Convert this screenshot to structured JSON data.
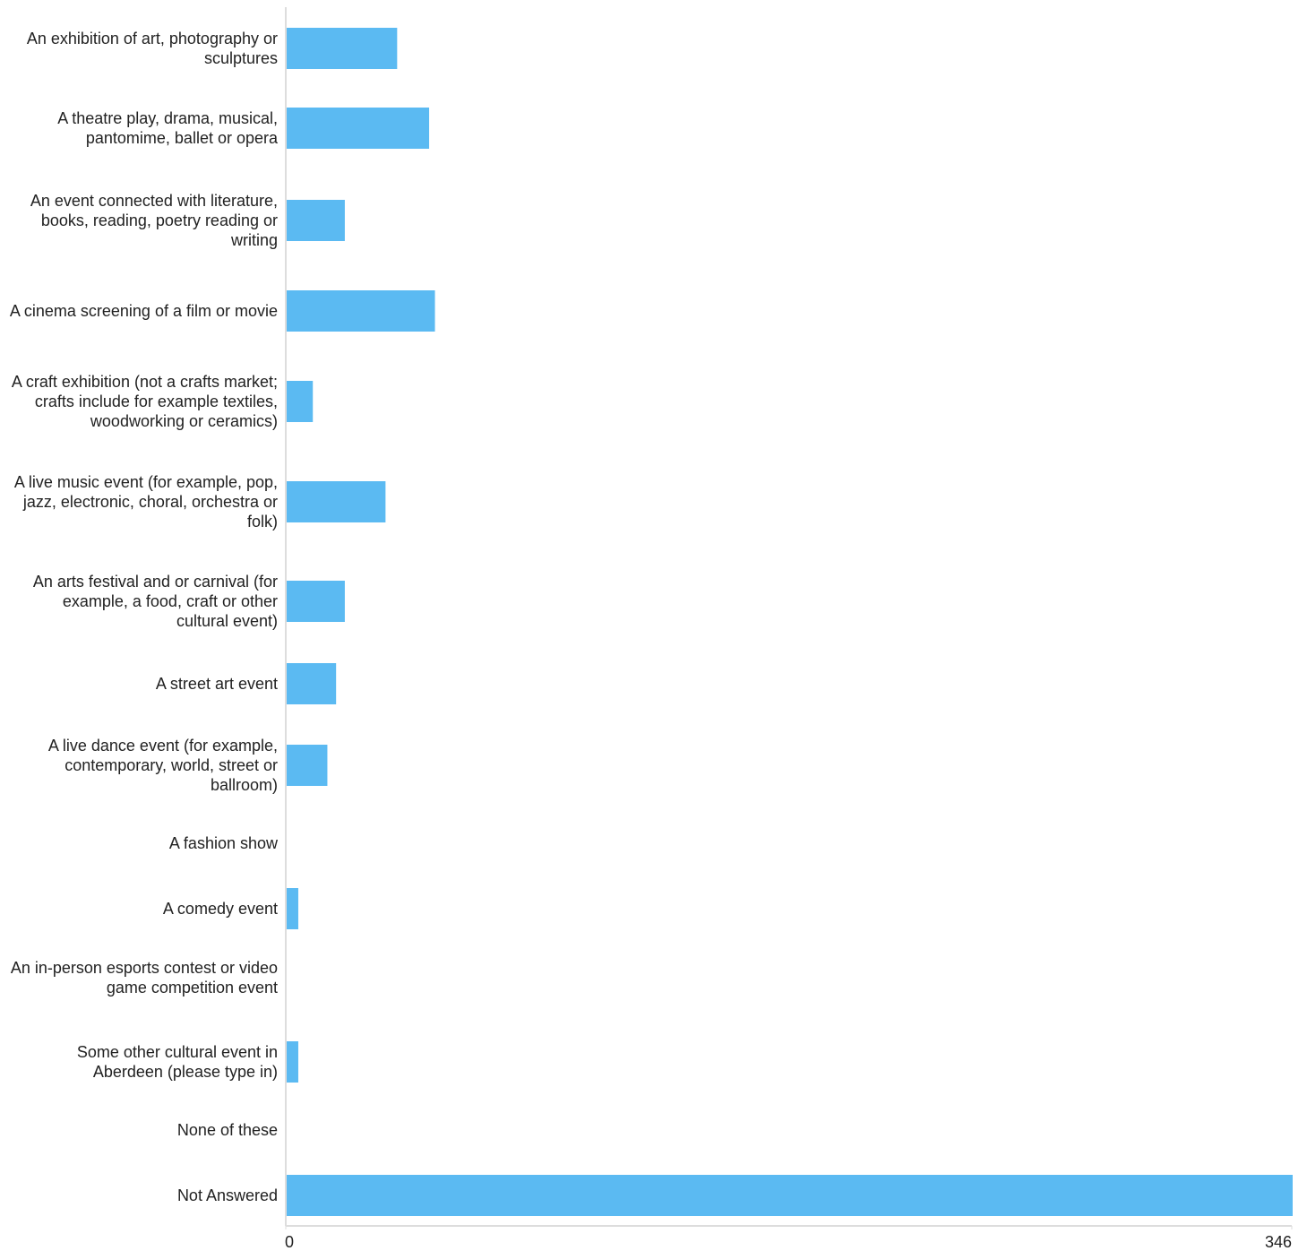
{
  "chart_data": {
    "type": "barh",
    "categories": [
      "An exhibition of art, photography or sculptures",
      "A theatre play, drama, musical, pantomime, ballet or opera",
      "An event connected with literature, books, reading, poetry reading or writing",
      "A cinema screening of a film or movie",
      "A craft exhibition (not a crafts market; crafts include for example textiles, woodworking or ceramics)",
      "A live music event (for example, pop, jazz, electronic, choral, orchestra or folk)",
      "An arts festival and or carnival (for example, a food, craft or other cultural event)",
      "A street art event",
      "A live dance event (for example, contemporary, world, street or ballroom)",
      "A fashion show",
      "A comedy event",
      "An in-person esports contest or video game competition event",
      "Some other cultural event in Aberdeen (please type in)",
      "None of these",
      "Not Answered"
    ],
    "values": [
      38,
      49,
      20,
      51,
      9,
      34,
      20,
      17,
      14,
      0,
      4,
      0,
      4,
      0,
      346
    ],
    "color": "#5bbaf2",
    "xlim": [
      0,
      346
    ],
    "xticks": [
      0,
      346
    ]
  }
}
